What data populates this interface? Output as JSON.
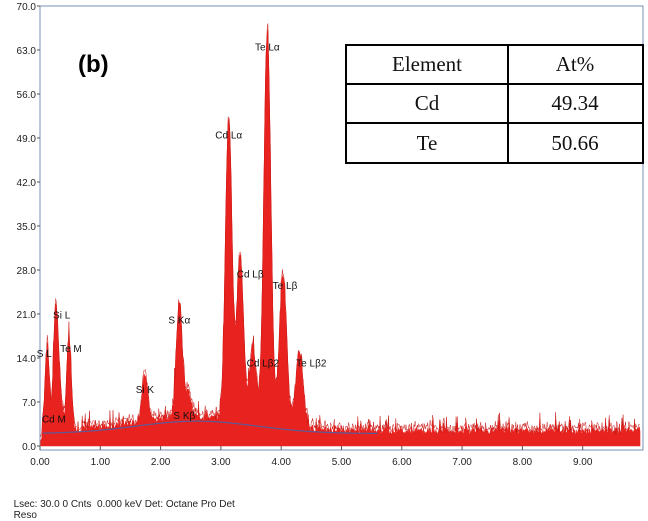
{
  "panel_label": "(b)",
  "footer": {
    "status": "Lsec: 30.0 0 Cnts  0.000 keV Det: Octane Pro Det",
    "reso": "Reso"
  },
  "table": {
    "headers": [
      "Element",
      "At%"
    ],
    "rows": [
      [
        "Cd",
        "49.34"
      ],
      [
        "Te",
        "50.66"
      ]
    ]
  },
  "chart_data": {
    "type": "line",
    "title": "",
    "xlabel": "",
    "ylabel": "",
    "xlim": [
      0,
      10
    ],
    "ylim": [
      0,
      70
    ],
    "x_ticks": [
      "0.00",
      "1.00",
      "2.00",
      "3.00",
      "4.00",
      "5.00",
      "6.00",
      "7.00",
      "8.00",
      "9.00"
    ],
    "x_tick_values": [
      0,
      1,
      2,
      3,
      4,
      5,
      6,
      7,
      8,
      9
    ],
    "y_ticks": [
      "0.0",
      "7.0",
      "14.0",
      "21.0",
      "28.0",
      "35.0",
      "42.0",
      "49.0",
      "56.0",
      "63.0",
      "70.0"
    ],
    "y_tick_values": [
      0,
      7,
      14,
      21,
      28,
      35,
      42,
      49,
      56,
      63,
      70
    ],
    "spectrum_color": "#e8231f",
    "background_color": "#5a5a9a",
    "peaks": [
      {
        "label": "S L",
        "x": 0.12,
        "y": 13.5
      },
      {
        "label": "Si L",
        "x": 0.26,
        "y": 19.0
      },
      {
        "label": "Cd M",
        "x": 0.33,
        "y": 6.0
      },
      {
        "label": "Te M",
        "x": 0.48,
        "y": 14.0
      },
      {
        "label": "Si K",
        "x": 1.74,
        "y": 7.5
      },
      {
        "label": "S Kα",
        "x": 2.31,
        "y": 18.5
      },
      {
        "label": "S Kβ",
        "x": 2.46,
        "y": 4.0
      },
      {
        "label": "Cd Lα",
        "x": 3.13,
        "y": 48.0
      },
      {
        "label": "Cd Lβ",
        "x": 3.32,
        "y": 26.0
      },
      {
        "label": "Cd Lβ2",
        "x": 3.53,
        "y": 12.0
      },
      {
        "label": "Te Lα",
        "x": 3.77,
        "y": 62.0
      },
      {
        "label": "Te Lβ",
        "x": 4.03,
        "y": 24.0
      },
      {
        "label": "Te Lβ2",
        "x": 4.3,
        "y": 12.0
      }
    ]
  }
}
